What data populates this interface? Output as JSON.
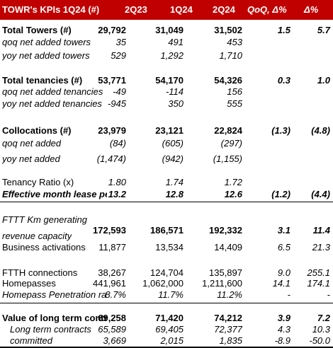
{
  "header": {
    "title": "TOWR's KPIs 1Q24 (#)",
    "col1": "2Q23",
    "col2": "1Q24",
    "col3": "2Q24",
    "col4": "QoQ, Δ%",
    "col5": "Δ%"
  },
  "rows": [
    {
      "label": "Total Towers (#)",
      "v1": "29,792",
      "v2": "31,049",
      "v3": "31,502",
      "v4": "1.5",
      "v5": "5.7"
    },
    {
      "label": "qoq net added towers",
      "v1": "35",
      "v2": "491",
      "v3": "453",
      "v4": "",
      "v5": ""
    },
    {
      "label": "yoy net added towers",
      "v1": "529",
      "v2": "1,292",
      "v3": "1,710",
      "v4": "",
      "v5": ""
    },
    {
      "label": "Total tenancies (#)",
      "v1": "53,771",
      "v2": "54,170",
      "v3": "54,326",
      "v4": "0.3",
      "v5": "1.0"
    },
    {
      "label": "qoq net added tenancies",
      "v1": "-49",
      "v2": "-114",
      "v3": "156",
      "v4": "",
      "v5": ""
    },
    {
      "label": "yoy net added tenancies",
      "v1": "-945",
      "v2": "350",
      "v3": "555",
      "v4": "",
      "v5": ""
    },
    {
      "label": "Collocations (#)",
      "v1": "23,979",
      "v2": "23,121",
      "v3": "22,824",
      "v4": "(1.3)",
      "v5": "(4.8)"
    },
    {
      "label": "qoq net added",
      "v1": "(84)",
      "v2": "(605)",
      "v3": "(297)",
      "v4": "",
      "v5": ""
    },
    {
      "label": "yoy net added",
      "v1": "(1,474)",
      "v2": "(942)",
      "v3": "(1,155)",
      "v4": "",
      "v5": ""
    },
    {
      "label": "Tenancy Ratio (x)",
      "v1": "1.80",
      "v2": "1.74",
      "v3": "1.72",
      "v4": "",
      "v5": ""
    },
    {
      "label": "Effective month lease per",
      "v1": "13.2",
      "v2": "12.8",
      "v3": "12.6",
      "v4": "(1.2)",
      "v5": "(4.4)"
    },
    {
      "label": "FTTT Km generating",
      "v1": "",
      "v2": "",
      "v3": "",
      "v4": "",
      "v5": ""
    },
    {
      "label": "revenue capacity",
      "v1": "172,593",
      "v2": "186,571",
      "v3": "192,332",
      "v4": "3.1",
      "v5": "11.4"
    },
    {
      "label": "Business activations",
      "v1": "11,877",
      "v2": "13,534",
      "v3": "14,409",
      "v4": "6.5",
      "v5": "21.3"
    },
    {
      "label": "FTTH connections",
      "v1": "38,267",
      "v2": "124,704",
      "v3": "135,897",
      "v4": "9.0",
      "v5": "255.1"
    },
    {
      "label": "Homepasses",
      "v1": "441,961",
      "v2": "1,062,000",
      "v3": "1,211,600",
      "v4": "14.1",
      "v5": "174.1"
    },
    {
      "label": "Homepass Penetration rat",
      "v1": "8.7%",
      "v2": "11.7%",
      "v3": "11.2%",
      "v4": "-",
      "v5": "-"
    },
    {
      "label": "Value of long term contrac",
      "v1": "69,258",
      "v2": "71,420",
      "v3": "74,212",
      "v4": "3.9",
      "v5": "7.2"
    },
    {
      "label": "Long term contracts",
      "v1": "65,589",
      "v2": "69,405",
      "v3": "72,377",
      "v4": "4.3",
      "v5": "10.3"
    },
    {
      "label": "committed",
      "v1": "3,669",
      "v2": "2,015",
      "v3": "1,835",
      "v4": "-8.9",
      "v5": "-50.0"
    }
  ]
}
